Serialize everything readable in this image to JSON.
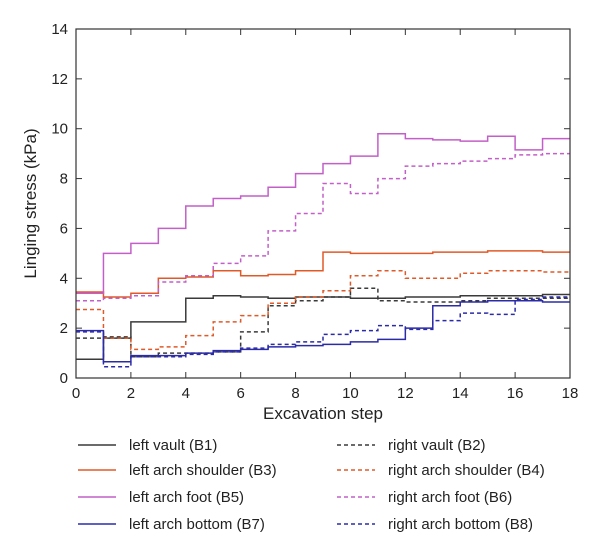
{
  "chart_data": {
    "type": "line",
    "step": true,
    "title": "",
    "xlabel": "Excavation step",
    "ylabel": "Linging stress (kPa)",
    "xlim": [
      0,
      18
    ],
    "ylim": [
      0,
      14
    ],
    "xticks": [
      0,
      2,
      4,
      6,
      8,
      10,
      12,
      14,
      16,
      18
    ],
    "yticks": [
      0,
      2,
      4,
      6,
      8,
      10,
      12,
      14
    ],
    "grid": false,
    "legend_position": "bottom",
    "x": [
      0,
      1,
      2,
      3,
      4,
      5,
      6,
      7,
      8,
      9,
      10,
      11,
      12,
      13,
      14,
      15,
      16,
      17,
      18
    ],
    "series": [
      {
        "name": "left vault (B1)",
        "color": "#3a3a3a",
        "dash": "solid",
        "values": [
          0.75,
          1.6,
          2.25,
          2.25,
          3.2,
          3.3,
          3.25,
          3.2,
          3.25,
          3.25,
          3.2,
          3.2,
          3.25,
          3.25,
          3.3,
          3.3,
          3.3,
          3.35,
          3.35
        ]
      },
      {
        "name": "right vault (B2)",
        "color": "#3a3a3a",
        "dash": "dashed",
        "values": [
          1.6,
          1.65,
          0.85,
          1.0,
          1.0,
          1.05,
          1.85,
          2.9,
          3.1,
          3.25,
          3.6,
          3.1,
          3.05,
          3.05,
          3.1,
          3.2,
          3.2,
          3.2,
          3.2
        ]
      },
      {
        "name": "left arch shoulder (B3)",
        "color": "#e05a28",
        "dash": "solid",
        "values": [
          3.45,
          3.25,
          3.4,
          4.0,
          4.05,
          4.3,
          4.1,
          4.15,
          4.3,
          5.05,
          5.0,
          5.0,
          5.0,
          5.05,
          5.05,
          5.1,
          5.1,
          5.05,
          5.05
        ]
      },
      {
        "name": "right arch shoulder (B4)",
        "color": "#e05a28",
        "dash": "dashed",
        "values": [
          2.75,
          1.6,
          1.15,
          1.25,
          1.7,
          2.25,
          2.5,
          3.0,
          3.25,
          3.5,
          4.1,
          4.3,
          4.0,
          4.0,
          4.2,
          4.3,
          4.3,
          4.25,
          4.25
        ]
      },
      {
        "name": "left arch foot (B5)",
        "color": "#c35fc8",
        "dash": "solid",
        "values": [
          3.4,
          5.0,
          5.4,
          6.0,
          6.9,
          7.2,
          7.3,
          7.65,
          8.2,
          8.6,
          8.9,
          9.8,
          9.6,
          9.55,
          9.5,
          9.7,
          9.15,
          9.6,
          9.6
        ]
      },
      {
        "name": "right arch foot (B6)",
        "color": "#c35fc8",
        "dash": "dashed",
        "values": [
          3.1,
          3.2,
          3.3,
          3.85,
          4.1,
          4.6,
          4.9,
          5.9,
          6.6,
          7.8,
          7.4,
          8.0,
          8.5,
          8.6,
          8.7,
          8.8,
          8.95,
          9.0,
          9.0
        ]
      },
      {
        "name": "left arch bottom (B7)",
        "color": "#2b2ba8",
        "dash": "solid",
        "values": [
          1.9,
          0.65,
          0.9,
          0.9,
          1.0,
          1.1,
          1.15,
          1.25,
          1.3,
          1.35,
          1.45,
          1.55,
          2.0,
          2.9,
          3.05,
          3.1,
          3.1,
          3.05,
          3.05
        ]
      },
      {
        "name": "right arch bottom (B8)",
        "color": "#2b2ba8",
        "dash": "dashed",
        "values": [
          1.85,
          0.45,
          0.85,
          0.85,
          0.95,
          1.05,
          1.2,
          1.35,
          1.45,
          1.75,
          1.9,
          2.1,
          1.95,
          2.3,
          2.6,
          2.55,
          3.15,
          3.25,
          3.25
        ]
      }
    ]
  }
}
